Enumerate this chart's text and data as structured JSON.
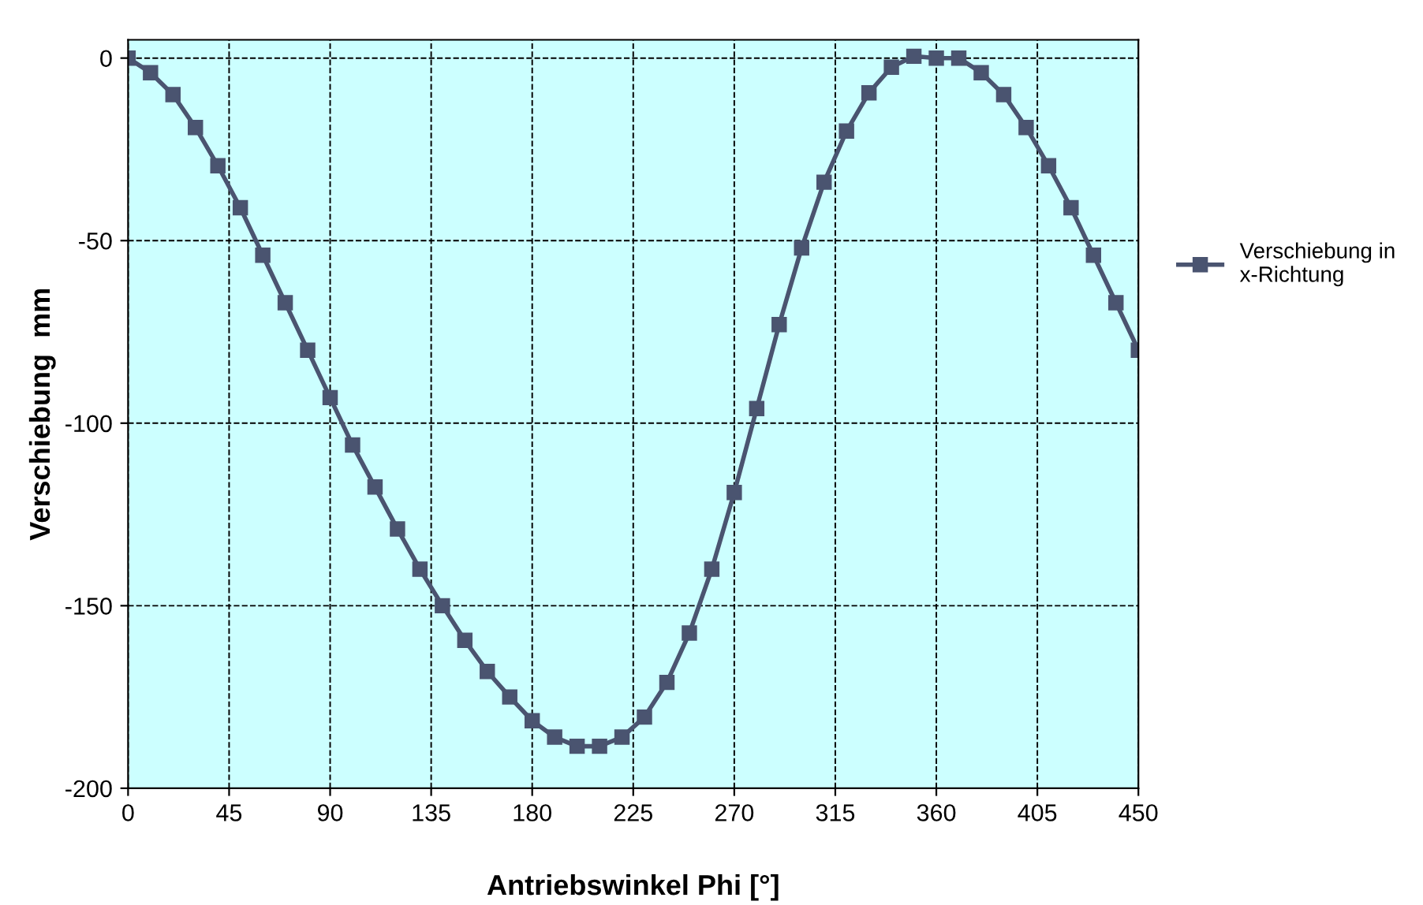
{
  "chart_data": {
    "type": "line",
    "xlabel": "Antriebswinkel Phi [°]",
    "ylabel": "Verschiebung  mm",
    "x": [
      0,
      10,
      20,
      30,
      40,
      50,
      60,
      70,
      80,
      90,
      100,
      110,
      120,
      130,
      140,
      150,
      160,
      170,
      180,
      190,
      200,
      210,
      220,
      230,
      240,
      250,
      260,
      270,
      280,
      290,
      300,
      310,
      320,
      330,
      340,
      350,
      360,
      370,
      380,
      390,
      400,
      410,
      420,
      430,
      440,
      450
    ],
    "series": [
      {
        "name": "Verschiebung in x-Richtung",
        "color": "#4a5470",
        "values": [
          0,
          -4,
          -10,
          -19,
          -29.5,
          -41,
          -54,
          -67,
          -80,
          -93,
          -106,
          -117.5,
          -129,
          -140,
          -150,
          -159.5,
          -168,
          -175,
          -181.5,
          -186,
          -188.5,
          -188.5,
          -186,
          -180.5,
          -171,
          -157.5,
          -140,
          -119,
          -96,
          -73,
          -52,
          -34,
          -20,
          -9.5,
          -2.5,
          0.5,
          0,
          0,
          -4,
          -10,
          -19,
          -29.5,
          -41,
          -54,
          -67,
          -80
        ]
      }
    ],
    "xlim": [
      0,
      450
    ],
    "xticks": [
      0,
      45,
      90,
      135,
      180,
      225,
      270,
      315,
      360,
      405,
      450
    ],
    "ylim": [
      -200,
      5
    ],
    "yticks": [
      -200,
      -150,
      -100,
      -50,
      0
    ],
    "grid": true,
    "legend": "right",
    "marker": "square",
    "line_style": "solid"
  }
}
